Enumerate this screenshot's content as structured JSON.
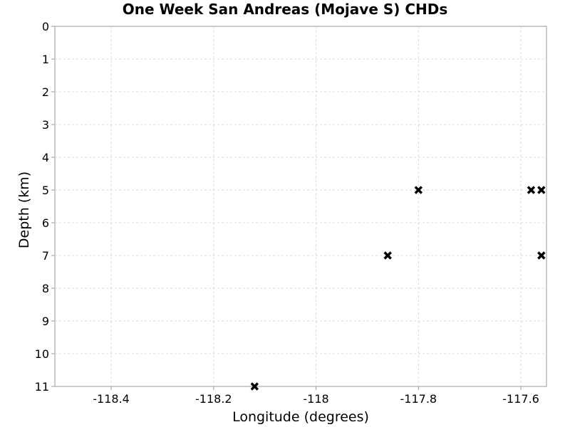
{
  "chart_data": {
    "type": "scatter",
    "title": "One Week San Andreas (Mojave S) CHDs",
    "xlabel": "Longitude (degrees)",
    "ylabel": "Depth (km)",
    "xlim": [
      -118.51,
      -117.55
    ],
    "ylim": [
      0,
      11
    ],
    "y_inverted": true,
    "grid": true,
    "marker": "x",
    "marker_color": "#000000",
    "x_ticks": [
      -118.4,
      -118.2,
      -118.0,
      -117.8,
      -117.6
    ],
    "x_tick_labels": [
      "-118.4",
      "-118.2",
      "-118",
      "-117.8",
      "-117.6"
    ],
    "y_ticks": [
      0,
      1,
      2,
      3,
      4,
      5,
      6,
      7,
      8,
      9,
      10,
      11
    ],
    "y_tick_labels": [
      "0",
      "1",
      "2",
      "3",
      "4",
      "5",
      "6",
      "7",
      "8",
      "9",
      "10",
      "11"
    ],
    "points": [
      {
        "x": -118.12,
        "y": 11
      },
      {
        "x": -117.86,
        "y": 7
      },
      {
        "x": -117.8,
        "y": 5
      },
      {
        "x": -117.58,
        "y": 5
      },
      {
        "x": -117.56,
        "y": 5
      },
      {
        "x": -117.56,
        "y": 7
      }
    ]
  }
}
